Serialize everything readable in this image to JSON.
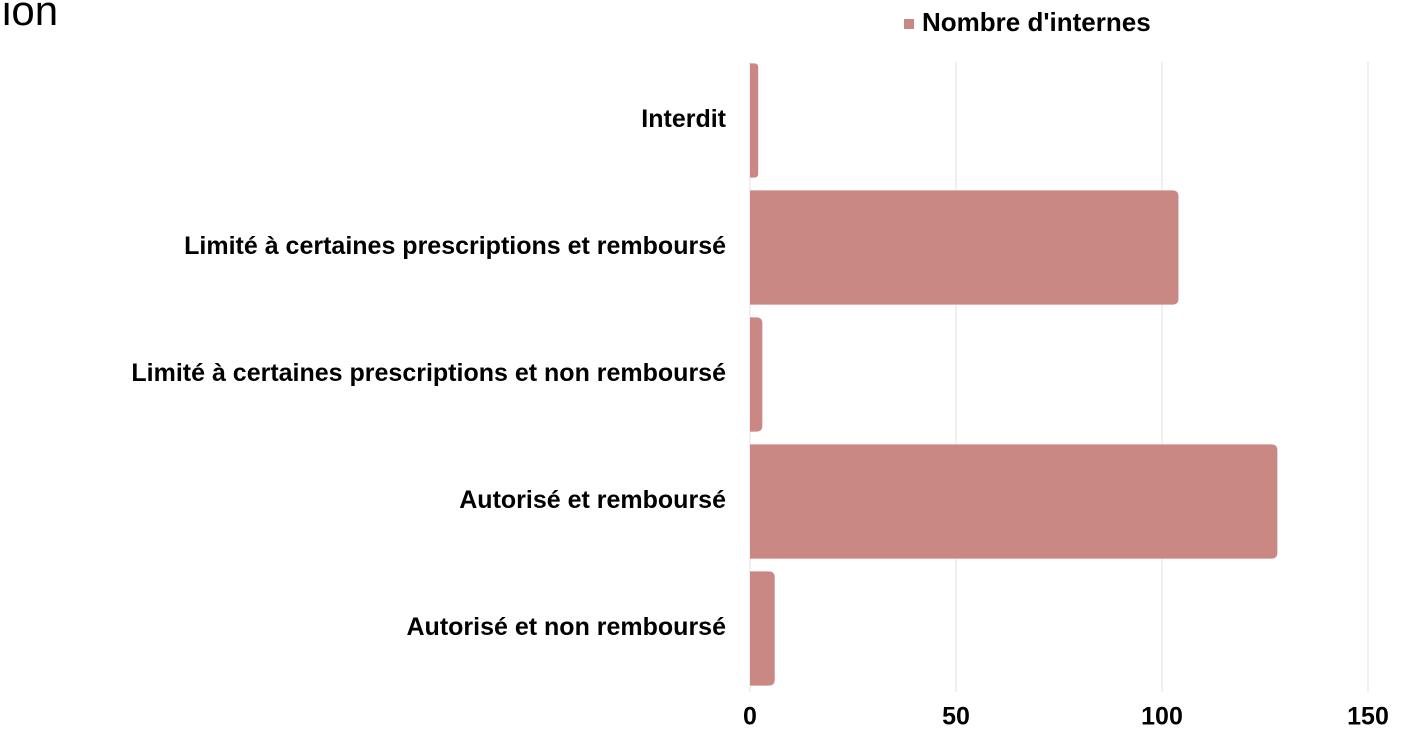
{
  "chart_data": {
    "type": "barh",
    "title": "ion",
    "categories": [
      "Interdit",
      "Limité à certaines prescriptions et remboursé",
      "Limité à certaines prescriptions et non remboursé",
      "Autorisé et remboursé",
      "Autorisé et non remboursé"
    ],
    "series": [
      {
        "name": "Nombre d'internes",
        "color": "#c98883",
        "values": [
          2,
          104,
          3,
          128,
          6
        ]
      }
    ],
    "xlim": [
      0,
      150
    ],
    "xticks": [
      0,
      50,
      100,
      150
    ],
    "grid": true,
    "legend": "top"
  }
}
